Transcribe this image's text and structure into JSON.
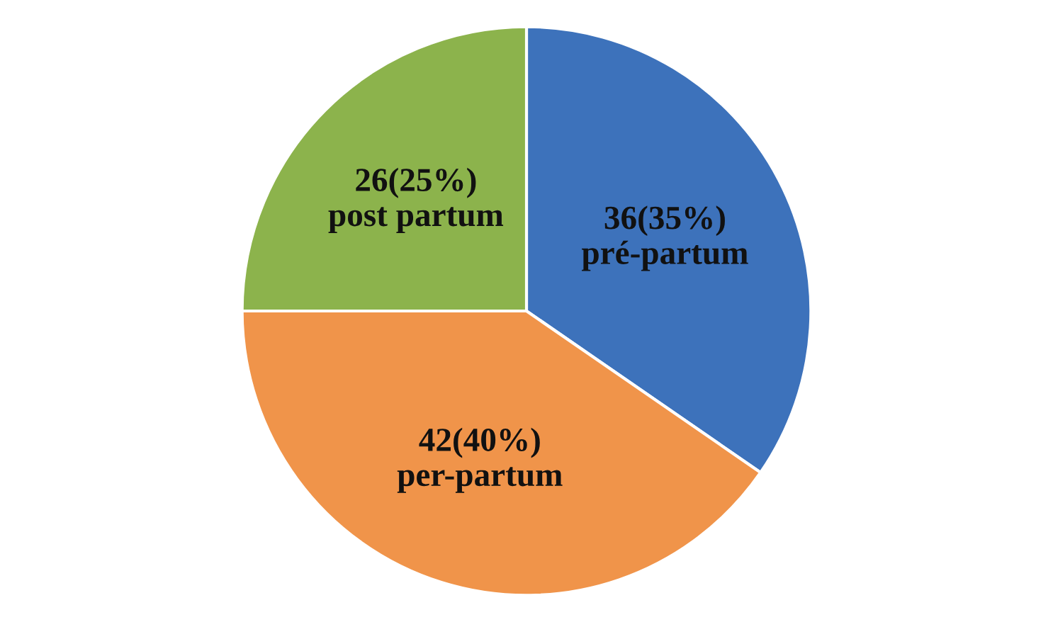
{
  "chart_data": {
    "type": "pie",
    "categories": [
      "pré-partum",
      "per-partum",
      "post partum"
    ],
    "values": [
      36,
      42,
      26
    ],
    "value_labels": [
      "36(35%)",
      "42(40%)",
      "26(25%)"
    ],
    "colors": [
      "#3d72bb",
      "#f0944a",
      "#8cb34c"
    ]
  }
}
